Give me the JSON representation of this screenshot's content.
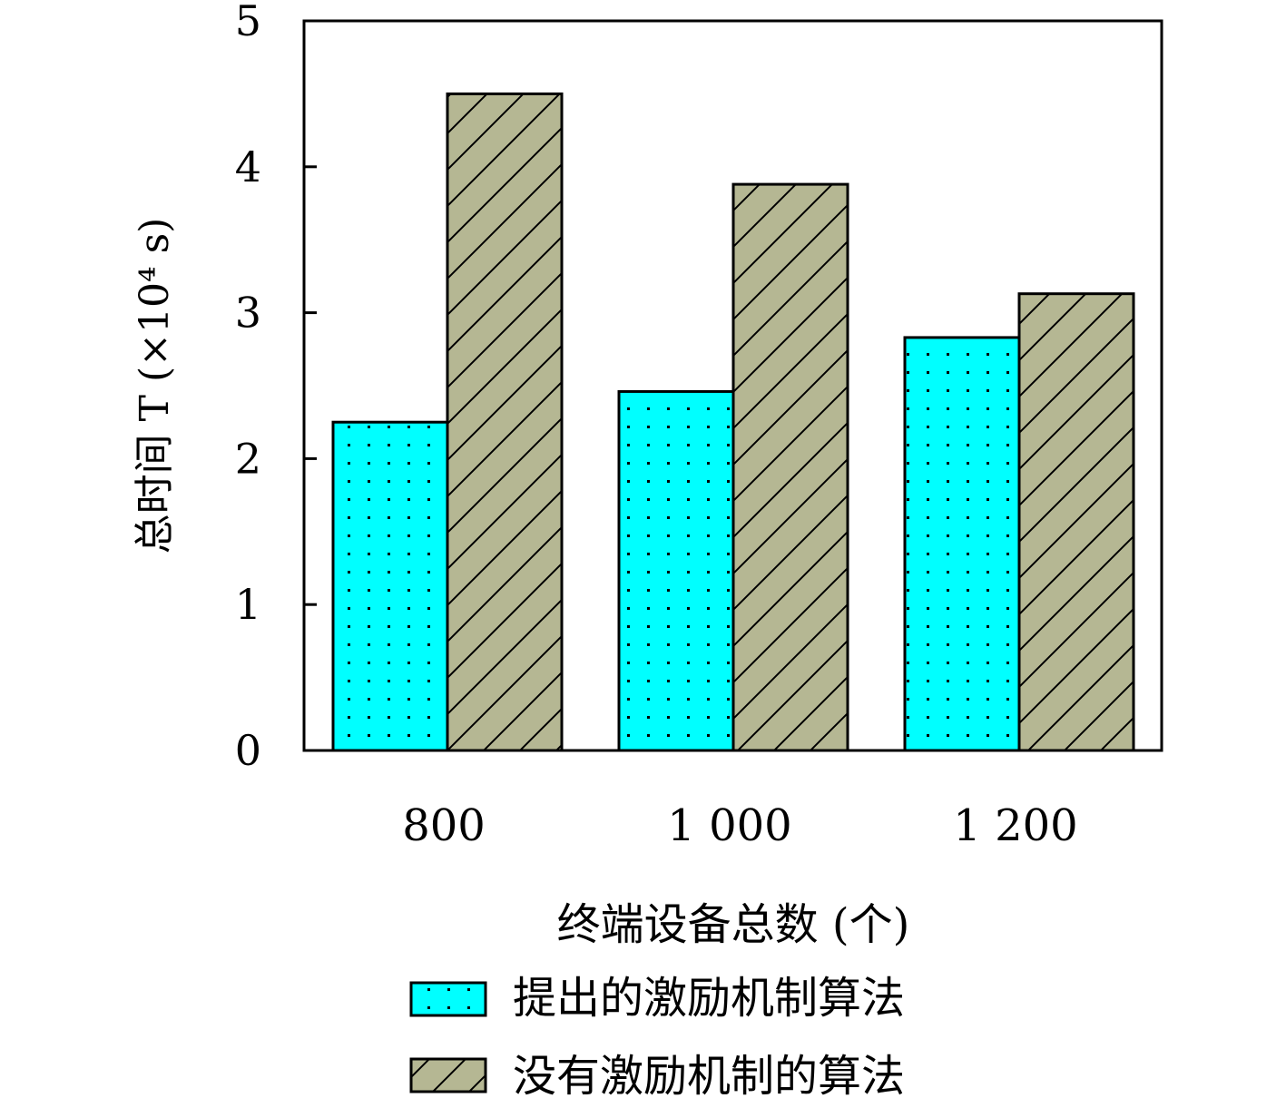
{
  "chart_data": {
    "type": "bar",
    "categories": [
      "800",
      "1 000",
      "1 200"
    ],
    "series": [
      {
        "name": "提出的激励机制算法",
        "values": [
          2.25,
          2.46,
          2.83
        ],
        "color": "#00ffff",
        "pattern": "dots"
      },
      {
        "name": "没有激励机制的算法",
        "values": [
          4.5,
          3.88,
          3.13
        ],
        "color": "#b5b793",
        "pattern": "hatch"
      }
    ],
    "xlabel": "终端设备总数 (个)",
    "ylabel": "总时间 T (×10⁴ s)",
    "ylim": [
      0,
      5
    ],
    "yticks": [
      "0",
      "1",
      "2",
      "3",
      "4",
      "5"
    ],
    "grid": false,
    "legend_position": "bottom-center"
  }
}
